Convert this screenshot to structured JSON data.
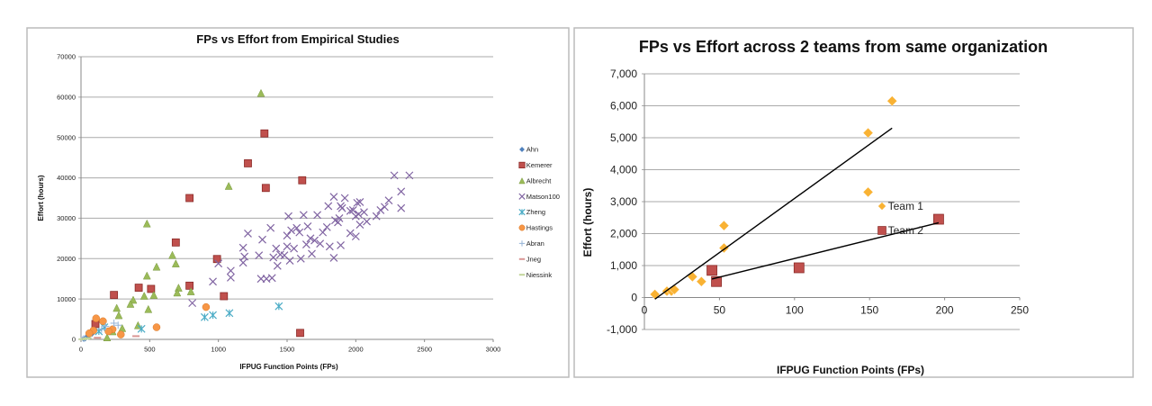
{
  "chart_data": [
    {
      "type": "scatter",
      "title": "FPs vs Effort from Empirical Studies",
      "xlabel": "IFPUG Function Points (FPs)",
      "ylabel": "Effort (hours)",
      "xlim": [
        0,
        3000
      ],
      "ylim": [
        0,
        70000
      ],
      "xticks": [
        0,
        500,
        1000,
        1500,
        2000,
        2500,
        3000
      ],
      "yticks": [
        0,
        10000,
        20000,
        30000,
        40000,
        50000,
        60000,
        70000
      ],
      "grid": "horizontal",
      "legend": "right",
      "series": [
        {
          "name": "Ahn",
          "marker": "diamond",
          "color": "#4f81bd",
          "points": [
            [
              20,
              200
            ],
            [
              30,
              300
            ],
            [
              40,
              600
            ],
            [
              60,
              1000
            ],
            [
              80,
              1500
            ],
            [
              50,
              800
            ]
          ]
        },
        {
          "name": "Kemerer",
          "marker": "square",
          "color": "#c0504d",
          "points": [
            [
              105,
              3800
            ],
            [
              240,
              11000
            ],
            [
              420,
              12800
            ],
            [
              510,
              12500
            ],
            [
              690,
              24000
            ],
            [
              790,
              35000
            ],
            [
              790,
              13300
            ],
            [
              990,
              19900
            ],
            [
              1040,
              10700
            ],
            [
              1215,
              43600
            ],
            [
              1335,
              51000
            ],
            [
              1345,
              37500
            ],
            [
              1610,
              39400
            ],
            [
              1595,
              1600
            ]
          ]
        },
        {
          "name": "Albrecht",
          "marker": "triangle",
          "color": "#9bbb59",
          "points": [
            [
              1310,
              61000
            ],
            [
              1075,
              38000
            ],
            [
              480,
              28700
            ],
            [
              550,
              18000
            ],
            [
              665,
              20900
            ],
            [
              690,
              18800
            ],
            [
              480,
              15800
            ],
            [
              460,
              10800
            ],
            [
              530,
              11000
            ],
            [
              710,
              12800
            ],
            [
              700,
              11600
            ],
            [
              800,
              11900
            ],
            [
              380,
              9800
            ],
            [
              360,
              8800
            ],
            [
              490,
              7500
            ],
            [
              260,
              7800
            ],
            [
              275,
              6000
            ],
            [
              300,
              2800
            ],
            [
              415,
              3500
            ],
            [
              190,
              500
            ],
            [
              230,
              2000
            ]
          ]
        },
        {
          "name": "Matson100",
          "marker": "x",
          "color": "#8064a2",
          "points": [
            [
              810,
              9000
            ],
            [
              960,
              14300
            ],
            [
              1000,
              18800
            ],
            [
              1090,
              17000
            ],
            [
              1090,
              15300
            ],
            [
              1180,
              19000
            ],
            [
              1180,
              22700
            ],
            [
              1190,
              20500
            ],
            [
              1215,
              26200
            ],
            [
              1295,
              20800
            ],
            [
              1310,
              15000
            ],
            [
              1320,
              24700
            ],
            [
              1350,
              15000
            ],
            [
              1380,
              27600
            ],
            [
              1390,
              15200
            ],
            [
              1400,
              20300
            ],
            [
              1420,
              22500
            ],
            [
              1430,
              18200
            ],
            [
              1450,
              21000
            ],
            [
              1480,
              20800
            ],
            [
              1500,
              23000
            ],
            [
              1500,
              25700
            ],
            [
              1510,
              30500
            ],
            [
              1520,
              19500
            ],
            [
              1530,
              27000
            ],
            [
              1550,
              22500
            ],
            [
              1570,
              27600
            ],
            [
              1590,
              26500
            ],
            [
              1600,
              20000
            ],
            [
              1620,
              30800
            ],
            [
              1640,
              23500
            ],
            [
              1650,
              28000
            ],
            [
              1670,
              25000
            ],
            [
              1680,
              21200
            ],
            [
              1700,
              24500
            ],
            [
              1720,
              30800
            ],
            [
              1740,
              23700
            ],
            [
              1760,
              26500
            ],
            [
              1790,
              27800
            ],
            [
              1800,
              33000
            ],
            [
              1810,
              23000
            ],
            [
              1840,
              35300
            ],
            [
              1840,
              20200
            ],
            [
              1850,
              29500
            ],
            [
              1870,
              29000
            ],
            [
              1880,
              30000
            ],
            [
              1890,
              33000
            ],
            [
              1890,
              23300
            ],
            [
              1900,
              32500
            ],
            [
              1920,
              35000
            ],
            [
              1960,
              26300
            ],
            [
              1960,
              31800
            ],
            [
              1980,
              32000
            ],
            [
              2000,
              25500
            ],
            [
              2000,
              30500
            ],
            [
              2010,
              33800
            ],
            [
              2020,
              31000
            ],
            [
              2030,
              34000
            ],
            [
              2030,
              28400
            ],
            [
              2060,
              31500
            ],
            [
              2080,
              29200
            ],
            [
              2150,
              30500
            ],
            [
              2180,
              32000
            ],
            [
              2210,
              32800
            ],
            [
              2240,
              34400
            ],
            [
              2280,
              40600
            ],
            [
              2330,
              36600
            ],
            [
              2330,
              32500
            ],
            [
              2390,
              40600
            ]
          ]
        },
        {
          "name": "Zheng",
          "marker": "asterisk",
          "color": "#4bacc6",
          "points": [
            [
              900,
              5500
            ],
            [
              960,
              6000
            ],
            [
              1080,
              6500
            ],
            [
              1440,
              8200
            ],
            [
              440,
              2600
            ],
            [
              130,
              2000
            ],
            [
              170,
              3000
            ]
          ]
        },
        {
          "name": "Hastings",
          "marker": "circle",
          "color": "#f79646",
          "points": [
            [
              910,
              8000
            ],
            [
              550,
              3000
            ],
            [
              110,
              5200
            ],
            [
              160,
              4500
            ],
            [
              90,
              2200
            ],
            [
              230,
              2500
            ],
            [
              290,
              1200
            ],
            [
              60,
              1500
            ],
            [
              200,
              2000
            ]
          ]
        },
        {
          "name": "Abran",
          "marker": "plus",
          "color": "#95b3d7",
          "points": [
            [
              240,
              4000
            ],
            [
              180,
              3200
            ],
            [
              270,
              3500
            ],
            [
              150,
              2500
            ]
          ]
        },
        {
          "name": "Jneg",
          "marker": "dash",
          "color": "#d99694",
          "points": [
            [
              400,
              800
            ],
            [
              120,
              400
            ]
          ]
        },
        {
          "name": "Niessink",
          "marker": "dash",
          "color": "#c3d69b",
          "points": [
            [
              10,
              50
            ],
            [
              20,
              100
            ],
            [
              40,
              200
            ],
            [
              50,
              300
            ]
          ]
        }
      ]
    },
    {
      "type": "scatter",
      "title": "FPs vs Effort across 2 teams from same organization",
      "xlabel": "IFPUG Function Points (FPs)",
      "ylabel": "Effort (hours)",
      "xlim": [
        0,
        250
      ],
      "ylim": [
        -1000,
        7000
      ],
      "xticks": [
        0,
        50,
        100,
        150,
        200,
        250
      ],
      "yticks": [
        -1000,
        0,
        1000,
        2000,
        3000,
        4000,
        5000,
        6000,
        7000
      ],
      "ytick_labels": [
        "-1,000",
        "0",
        "1,000",
        "2,000",
        "3,000",
        "4,000",
        "5,000",
        "6,000",
        "7,000"
      ],
      "grid": "horizontal",
      "legend": "right",
      "series": [
        {
          "name": "Team 1",
          "marker": "diamond",
          "color": "#f9b233",
          "points": [
            [
              7,
              100
            ],
            [
              15,
              200
            ],
            [
              18,
              200
            ],
            [
              20,
              250
            ],
            [
              32,
              650
            ],
            [
              38,
              500
            ],
            [
              53,
              1550
            ],
            [
              53,
              2250
            ],
            [
              149,
              5150
            ],
            [
              149,
              3300
            ],
            [
              165,
              6150
            ]
          ],
          "trendline": [
            [
              7,
              -50
            ],
            [
              165,
              5300
            ]
          ]
        },
        {
          "name": "Team 2",
          "marker": "square",
          "color": "#c0504d",
          "points": [
            [
              45,
              850
            ],
            [
              48,
              500
            ],
            [
              103,
              930
            ],
            [
              196,
              2450
            ]
          ],
          "trendline": [
            [
              45,
              580
            ],
            [
              196,
              2340
            ]
          ]
        }
      ]
    }
  ]
}
